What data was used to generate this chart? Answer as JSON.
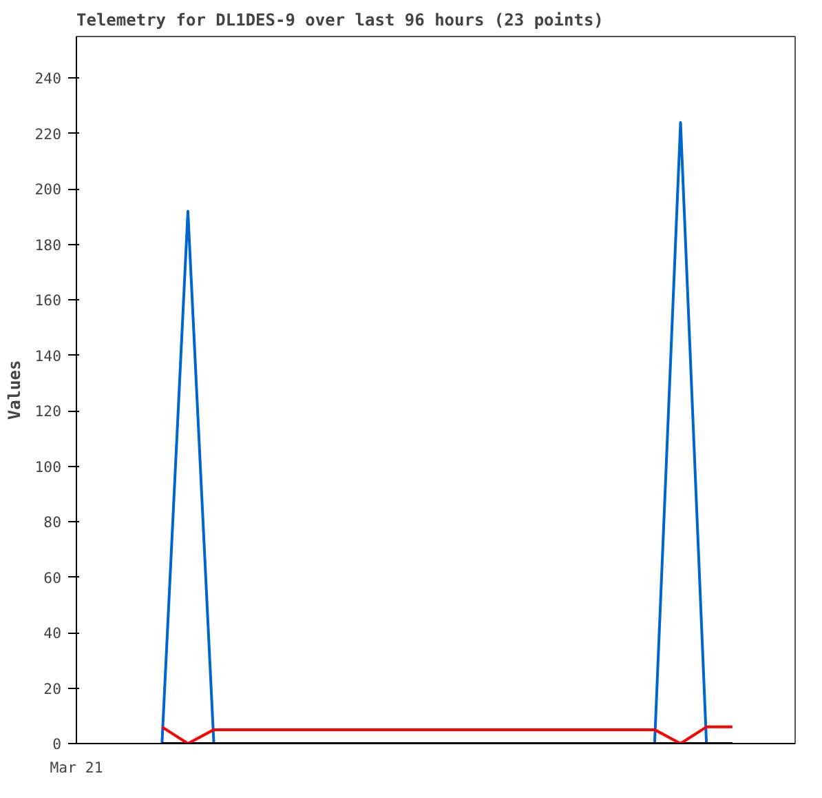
{
  "chart_data": {
    "type": "line",
    "title": "Telemetry for DL1DES-9 over last 96 hours (23 points)",
    "ylabel": "Values",
    "annotations": [
      "Mar 21"
    ],
    "categories": [
      null,
      null,
      null,
      null,
      null,
      null,
      null,
      null,
      null,
      null,
      null,
      null,
      null,
      null,
      null,
      null,
      null,
      null,
      null,
      null,
      null,
      null,
      null
    ],
    "ylim": [
      0,
      255
    ],
    "yticks": [
      0,
      20,
      40,
      60,
      80,
      100,
      120,
      140,
      160,
      180,
      200,
      220,
      240
    ],
    "series": [
      {
        "color": "#0066cc",
        "values": [
          0,
          192,
          0,
          null,
          null,
          null,
          null,
          null,
          null,
          null,
          null,
          null,
          null,
          null,
          null,
          null,
          null,
          null,
          null,
          0,
          224,
          0,
          null
        ]
      },
      {
        "color": "#000000",
        "values": [
          0,
          0,
          0,
          0,
          0,
          0,
          0,
          0,
          0,
          0,
          0,
          0,
          0,
          0,
          0,
          0,
          0,
          0,
          0,
          0,
          0,
          0,
          0
        ]
      },
      {
        "color": "#ff0000",
        "values": [
          6,
          0,
          5,
          5,
          5,
          5,
          5,
          5,
          5,
          5,
          5,
          5,
          5,
          5,
          5,
          5,
          5,
          5,
          5,
          5,
          0,
          6,
          6
        ]
      }
    ]
  }
}
